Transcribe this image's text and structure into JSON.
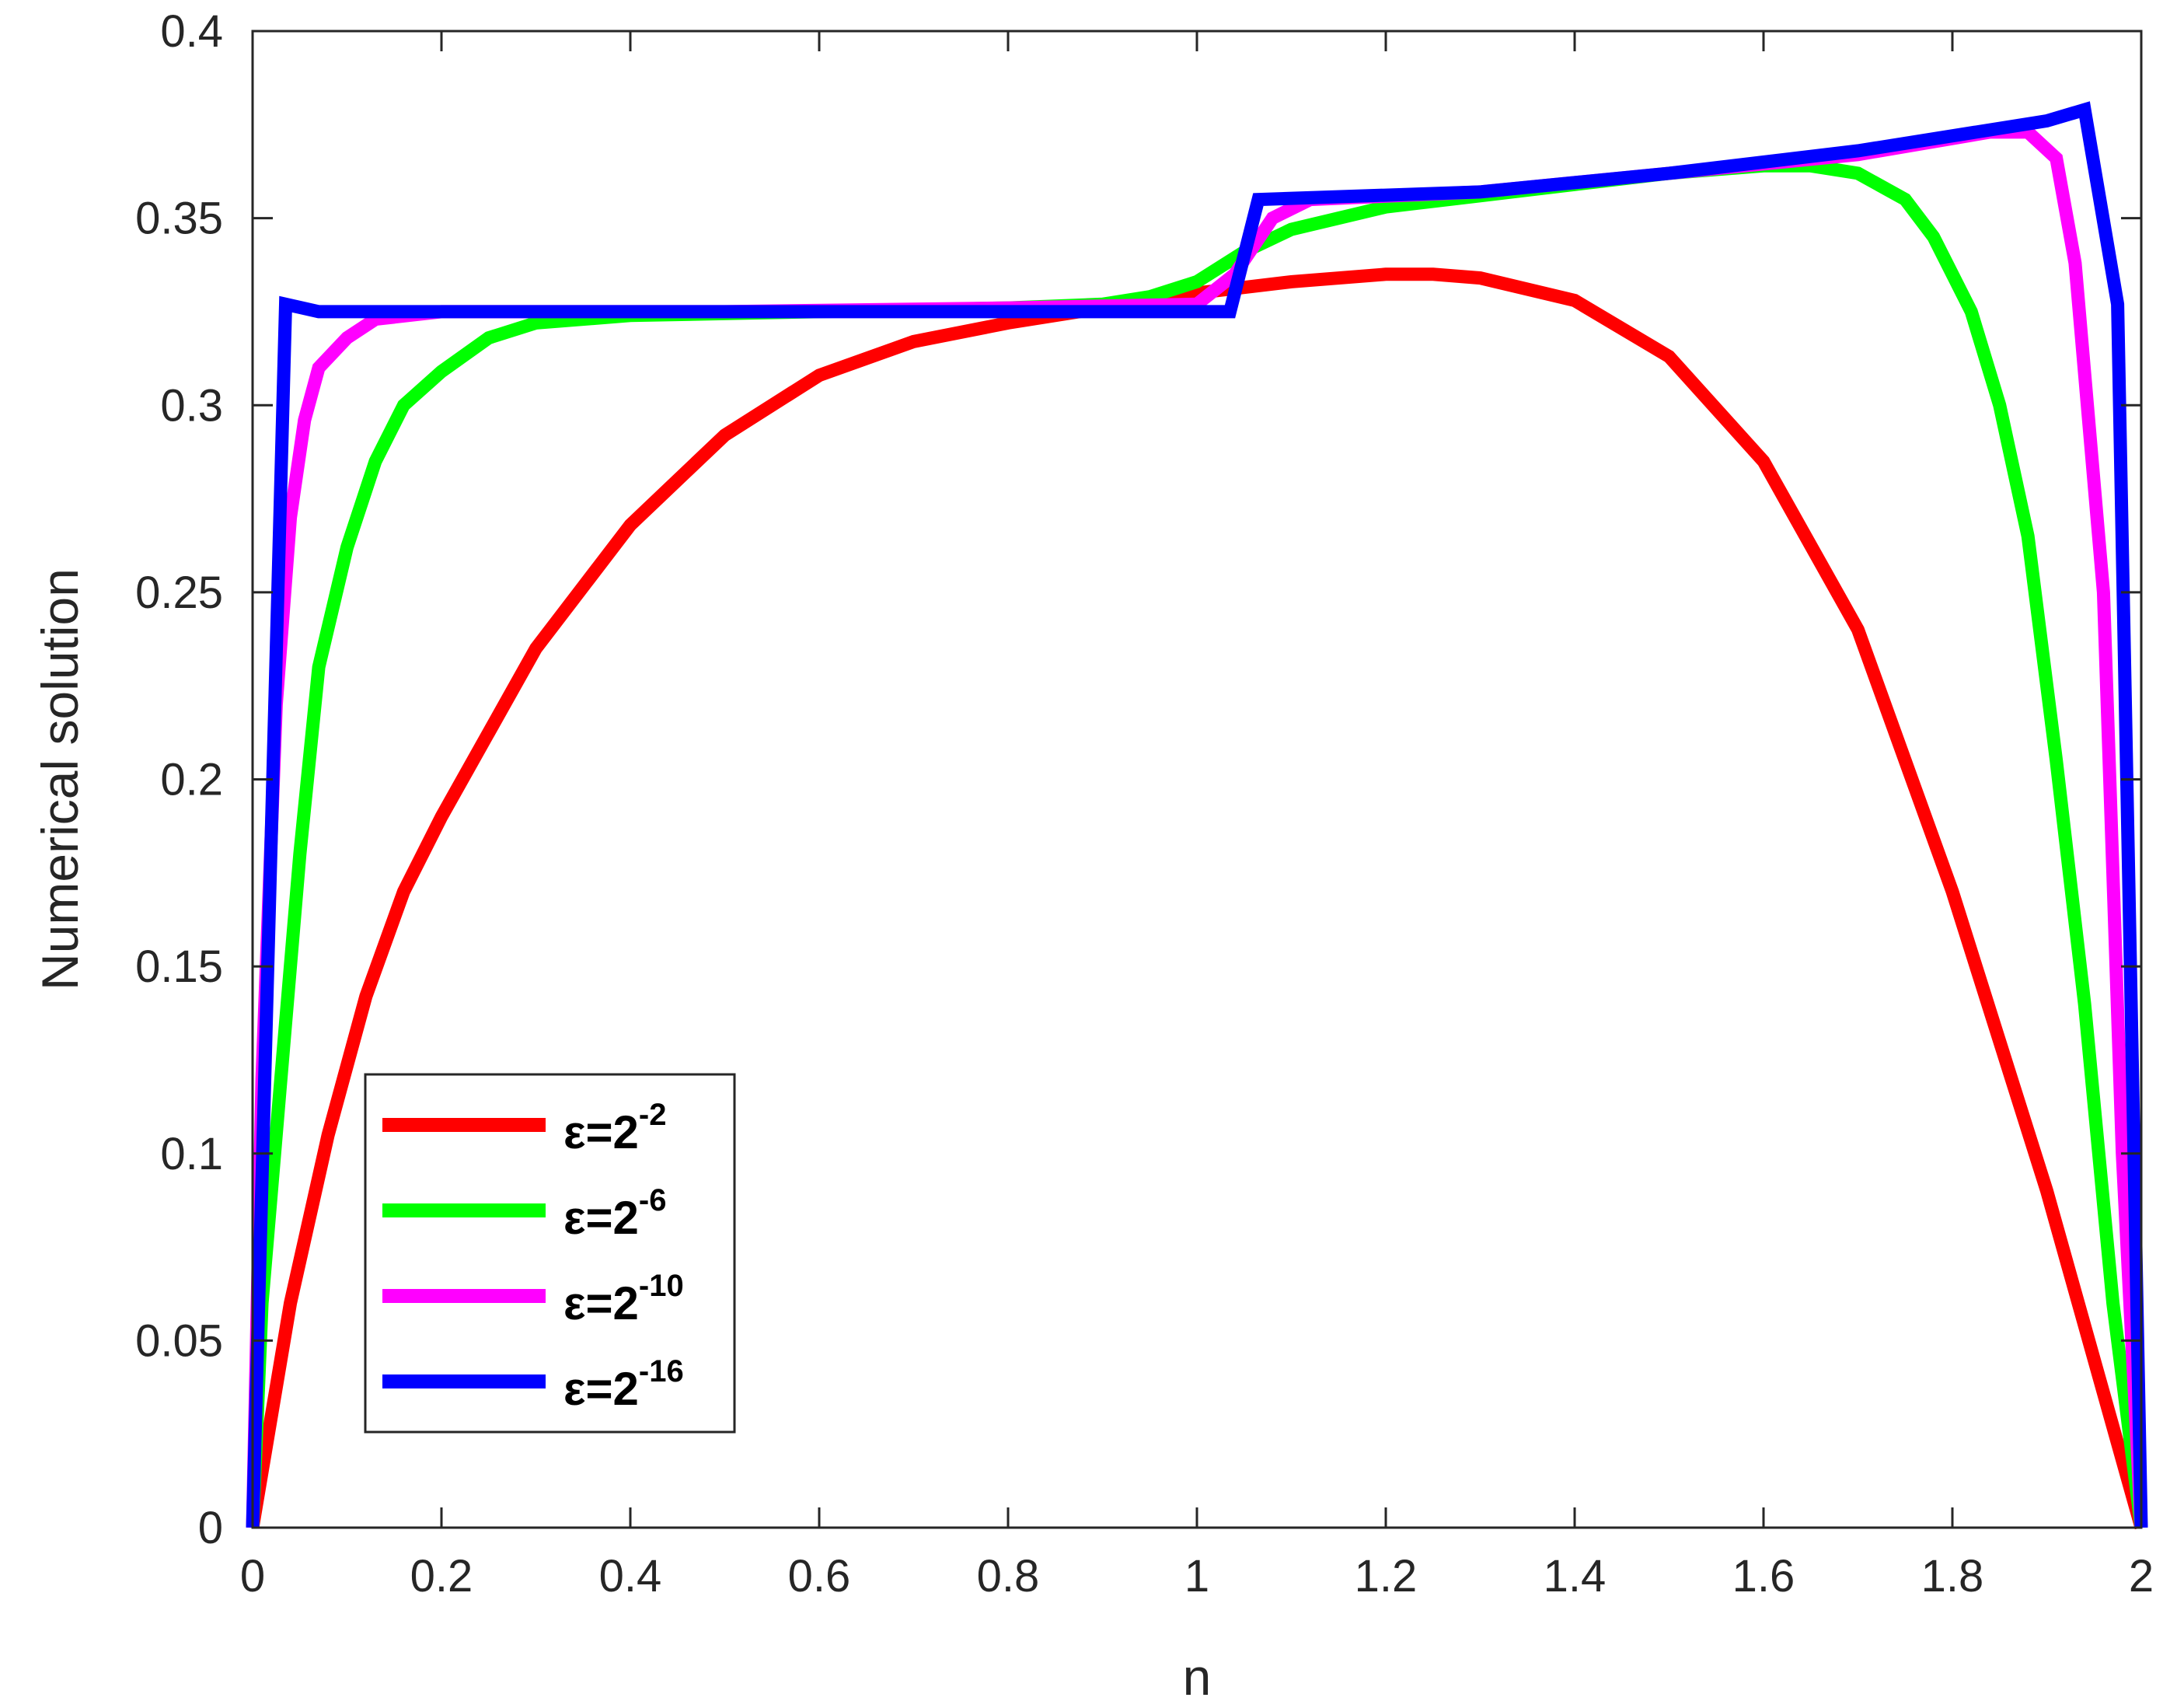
{
  "chart_data": {
    "type": "line",
    "title": "",
    "xlabel": "n",
    "ylabel": "Numerical solution",
    "xlim": [
      0,
      2
    ],
    "ylim": [
      0,
      0.4
    ],
    "xticks": [
      "0",
      "0.2",
      "0.4",
      "0.6",
      "0.8",
      "1",
      "1.2",
      "1.4",
      "1.6",
      "1.8",
      "2"
    ],
    "yticks": [
      "0",
      "0.05",
      "0.1",
      "0.15",
      "0.2",
      "0.25",
      "0.3",
      "0.35",
      "0.4"
    ],
    "grid": false,
    "legend_position": "lower-left",
    "series": [
      {
        "name": "ε=2^-2",
        "label_base": "ε=2",
        "label_exp": "-2",
        "color": "#ff0000",
        "x": [
          0,
          0.04,
          0.08,
          0.12,
          0.16,
          0.2,
          0.3,
          0.4,
          0.5,
          0.6,
          0.7,
          0.8,
          0.9,
          1.0,
          1.1,
          1.2,
          1.25,
          1.3,
          1.4,
          1.5,
          1.6,
          1.7,
          1.8,
          1.9,
          2.0
        ],
        "y": [
          0,
          0.06,
          0.105,
          0.142,
          0.17,
          0.19,
          0.235,
          0.268,
          0.292,
          0.308,
          0.317,
          0.322,
          0.326,
          0.33,
          0.333,
          0.335,
          0.335,
          0.334,
          0.328,
          0.313,
          0.285,
          0.24,
          0.17,
          0.09,
          0
        ]
      },
      {
        "name": "ε=2^-6",
        "label_base": "ε=2",
        "label_exp": "-6",
        "color": "#00ff00",
        "x": [
          0,
          0.01,
          0.03,
          0.05,
          0.07,
          0.1,
          0.13,
          0.16,
          0.2,
          0.25,
          0.3,
          0.4,
          0.6,
          0.8,
          0.9,
          0.95,
          1.0,
          1.05,
          1.1,
          1.2,
          1.3,
          1.4,
          1.5,
          1.6,
          1.65,
          1.7,
          1.75,
          1.78,
          1.82,
          1.85,
          1.88,
          1.91,
          1.94,
          1.97,
          2.0
        ],
        "y": [
          0,
          0.06,
          0.12,
          0.18,
          0.23,
          0.262,
          0.285,
          0.3,
          0.309,
          0.318,
          0.322,
          0.324,
          0.325,
          0.326,
          0.327,
          0.329,
          0.333,
          0.341,
          0.347,
          0.353,
          0.356,
          0.359,
          0.362,
          0.364,
          0.364,
          0.362,
          0.355,
          0.345,
          0.325,
          0.3,
          0.265,
          0.205,
          0.14,
          0.06,
          0
        ]
      },
      {
        "name": "ε=2^-10",
        "label_base": "ε=2",
        "label_exp": "-10",
        "color": "#ff00ff",
        "x": [
          0,
          0.01,
          0.025,
          0.04,
          0.055,
          0.07,
          0.1,
          0.13,
          0.2,
          0.5,
          0.8,
          1.0,
          1.04,
          1.08,
          1.12,
          1.3,
          1.5,
          1.7,
          1.84,
          1.88,
          1.91,
          1.93,
          1.96,
          1.98,
          2.0
        ],
        "y": [
          0,
          0.12,
          0.22,
          0.27,
          0.296,
          0.31,
          0.318,
          0.323,
          0.325,
          0.325,
          0.326,
          0.327,
          0.335,
          0.35,
          0.355,
          0.357,
          0.362,
          0.367,
          0.373,
          0.373,
          0.366,
          0.338,
          0.25,
          0.1,
          0
        ]
      },
      {
        "name": "ε=2^-16",
        "label_base": "ε=2",
        "label_exp": "-16",
        "color": "#0000ff",
        "x": [
          0,
          0.035,
          0.07,
          0.5,
          1.0,
          1.035,
          1.065,
          1.3,
          1.5,
          1.7,
          1.9,
          1.94,
          1.975,
          2.0
        ],
        "y": [
          0,
          0.327,
          0.325,
          0.325,
          0.325,
          0.325,
          0.355,
          0.357,
          0.362,
          0.368,
          0.376,
          0.379,
          0.327,
          0
        ]
      }
    ]
  }
}
